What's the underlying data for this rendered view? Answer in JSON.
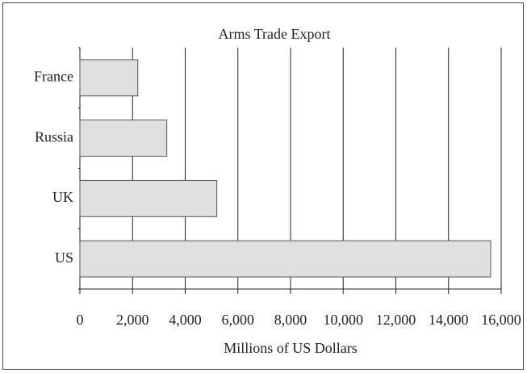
{
  "chart_data": {
    "type": "bar",
    "orientation": "horizontal",
    "title": "Arms Trade Export",
    "x_label": "Millions of US Dollars",
    "categories": [
      "France",
      "Russia",
      "UK",
      "US"
    ],
    "values": [
      2200,
      3300,
      5200,
      15600
    ],
    "color": "#e0e0e0",
    "xlim": [
      0,
      16000
    ],
    "xticks": [
      0,
      {
        "value": 2000,
        "label": "2,000"
      },
      {
        "value": 4000,
        "label": "4,000"
      },
      {
        "value": 6000,
        "label": "6,000"
      },
      {
        "value": 8000,
        "label": "8,000"
      },
      {
        "value": 10000,
        "label": "10,000"
      },
      {
        "value": 12000,
        "label": "12,000"
      },
      {
        "value": 14000,
        "label": "14,000"
      },
      {
        "value": 16000,
        "label": "16,000"
      }
    ],
    "grid": true
  }
}
